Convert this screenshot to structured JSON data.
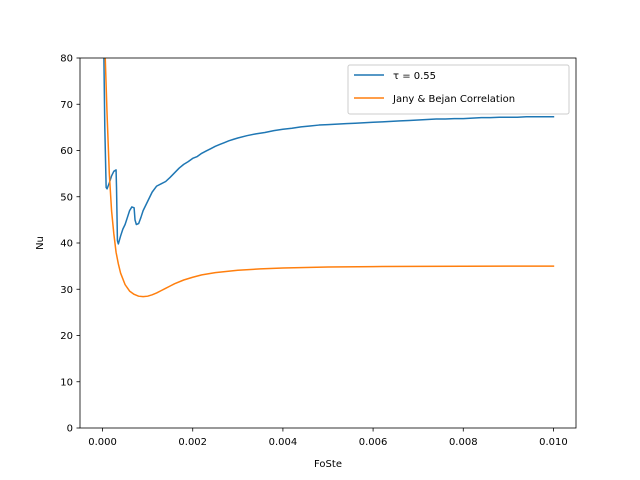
{
  "chart_data": {
    "type": "line",
    "title": "",
    "xlabel": "FoSte",
    "ylabel": "Nu",
    "xlim": [
      -0.0005,
      0.0105
    ],
    "ylim": [
      0,
      80
    ],
    "x_ticks": [
      0.0,
      0.002,
      0.004,
      0.006,
      0.008,
      0.01
    ],
    "x_tick_labels": [
      "0.000",
      "0.002",
      "0.004",
      "0.006",
      "0.008",
      "0.010"
    ],
    "y_ticks": [
      0,
      10,
      20,
      30,
      40,
      50,
      60,
      70,
      80
    ],
    "y_tick_labels": [
      "0",
      "10",
      "20",
      "30",
      "40",
      "50",
      "60",
      "70",
      "80"
    ],
    "grid": false,
    "legend_position": "top-right",
    "series": [
      {
        "name": "τ = 0.55",
        "color": "#1f77b4",
        "points": [
          [
            3e-05,
            80
          ],
          [
            5e-05,
            65
          ],
          [
            8e-05,
            52
          ],
          [
            0.0001,
            51.7
          ],
          [
            0.00015,
            53
          ],
          [
            0.0002,
            54.5
          ],
          [
            0.00025,
            55.5
          ],
          [
            0.0003,
            55.8
          ],
          [
            0.00031,
            52
          ],
          [
            0.00033,
            40.5
          ],
          [
            0.00035,
            39.8
          ],
          [
            0.0004,
            41.5
          ],
          [
            0.00045,
            43
          ],
          [
            0.0005,
            44
          ],
          [
            0.00055,
            45.5
          ],
          [
            0.0006,
            47
          ],
          [
            0.00065,
            47.8
          ],
          [
            0.0007,
            47.6
          ],
          [
            0.00072,
            45
          ],
          [
            0.00075,
            44
          ],
          [
            0.0008,
            44.2
          ],
          [
            0.00085,
            45.5
          ],
          [
            0.0009,
            47
          ],
          [
            0.001,
            49
          ],
          [
            0.0011,
            51
          ],
          [
            0.0012,
            52.3
          ],
          [
            0.0013,
            52.8
          ],
          [
            0.0014,
            53.3
          ],
          [
            0.0015,
            54.2
          ],
          [
            0.0016,
            55.2
          ],
          [
            0.0017,
            56.2
          ],
          [
            0.0018,
            57
          ],
          [
            0.0019,
            57.6
          ],
          [
            0.002,
            58.3
          ],
          [
            0.0021,
            58.7
          ],
          [
            0.0022,
            59.4
          ],
          [
            0.0023,
            59.9
          ],
          [
            0.0024,
            60.4
          ],
          [
            0.0025,
            60.9
          ],
          [
            0.0026,
            61.3
          ],
          [
            0.0027,
            61.7
          ],
          [
            0.0028,
            62.1
          ],
          [
            0.0029,
            62.4
          ],
          [
            0.003,
            62.7
          ],
          [
            0.0032,
            63.2
          ],
          [
            0.0034,
            63.6
          ],
          [
            0.0036,
            63.9
          ],
          [
            0.0038,
            64.3
          ],
          [
            0.004,
            64.6
          ],
          [
            0.0042,
            64.8
          ],
          [
            0.0044,
            65.1
          ],
          [
            0.0046,
            65.3
          ],
          [
            0.0048,
            65.5
          ],
          [
            0.005,
            65.6
          ],
          [
            0.0052,
            65.7
          ],
          [
            0.0054,
            65.8
          ],
          [
            0.0056,
            65.9
          ],
          [
            0.0058,
            66
          ],
          [
            0.006,
            66.1
          ],
          [
            0.0062,
            66.2
          ],
          [
            0.0064,
            66.3
          ],
          [
            0.0066,
            66.4
          ],
          [
            0.0068,
            66.5
          ],
          [
            0.007,
            66.6
          ],
          [
            0.0072,
            66.7
          ],
          [
            0.0074,
            66.8
          ],
          [
            0.0076,
            66.8
          ],
          [
            0.0078,
            66.9
          ],
          [
            0.008,
            66.9
          ],
          [
            0.0082,
            67
          ],
          [
            0.0084,
            67.1
          ],
          [
            0.0086,
            67.1
          ],
          [
            0.0088,
            67.2
          ],
          [
            0.009,
            67.2
          ],
          [
            0.0092,
            67.2
          ],
          [
            0.0094,
            67.3
          ],
          [
            0.0096,
            67.3
          ],
          [
            0.0098,
            67.3
          ],
          [
            0.01,
            67.3
          ]
        ]
      },
      {
        "name": "Jany & Bejan Correlation",
        "color": "#ff7f0e",
        "points": [
          [
            6e-05,
            80
          ],
          [
            0.0001,
            68
          ],
          [
            0.00015,
            55
          ],
          [
            0.0002,
            47
          ],
          [
            0.00025,
            42
          ],
          [
            0.0003,
            38
          ],
          [
            0.00035,
            35.5
          ],
          [
            0.0004,
            33.5
          ],
          [
            0.0005,
            31
          ],
          [
            0.0006,
            29.6
          ],
          [
            0.0007,
            28.9
          ],
          [
            0.0008,
            28.5
          ],
          [
            0.0009,
            28.4
          ],
          [
            0.001,
            28.5
          ],
          [
            0.0011,
            28.8
          ],
          [
            0.0012,
            29.2
          ],
          [
            0.0013,
            29.7
          ],
          [
            0.0014,
            30.2
          ],
          [
            0.0015,
            30.7
          ],
          [
            0.0016,
            31.2
          ],
          [
            0.0018,
            32.0
          ],
          [
            0.002,
            32.6
          ],
          [
            0.0022,
            33.1
          ],
          [
            0.0025,
            33.6
          ],
          [
            0.003,
            34.1
          ],
          [
            0.0035,
            34.4
          ],
          [
            0.004,
            34.6
          ],
          [
            0.005,
            34.8
          ],
          [
            0.006,
            34.9
          ],
          [
            0.007,
            34.95
          ],
          [
            0.008,
            34.98
          ],
          [
            0.009,
            35.0
          ],
          [
            0.01,
            35.0
          ]
        ]
      }
    ]
  }
}
